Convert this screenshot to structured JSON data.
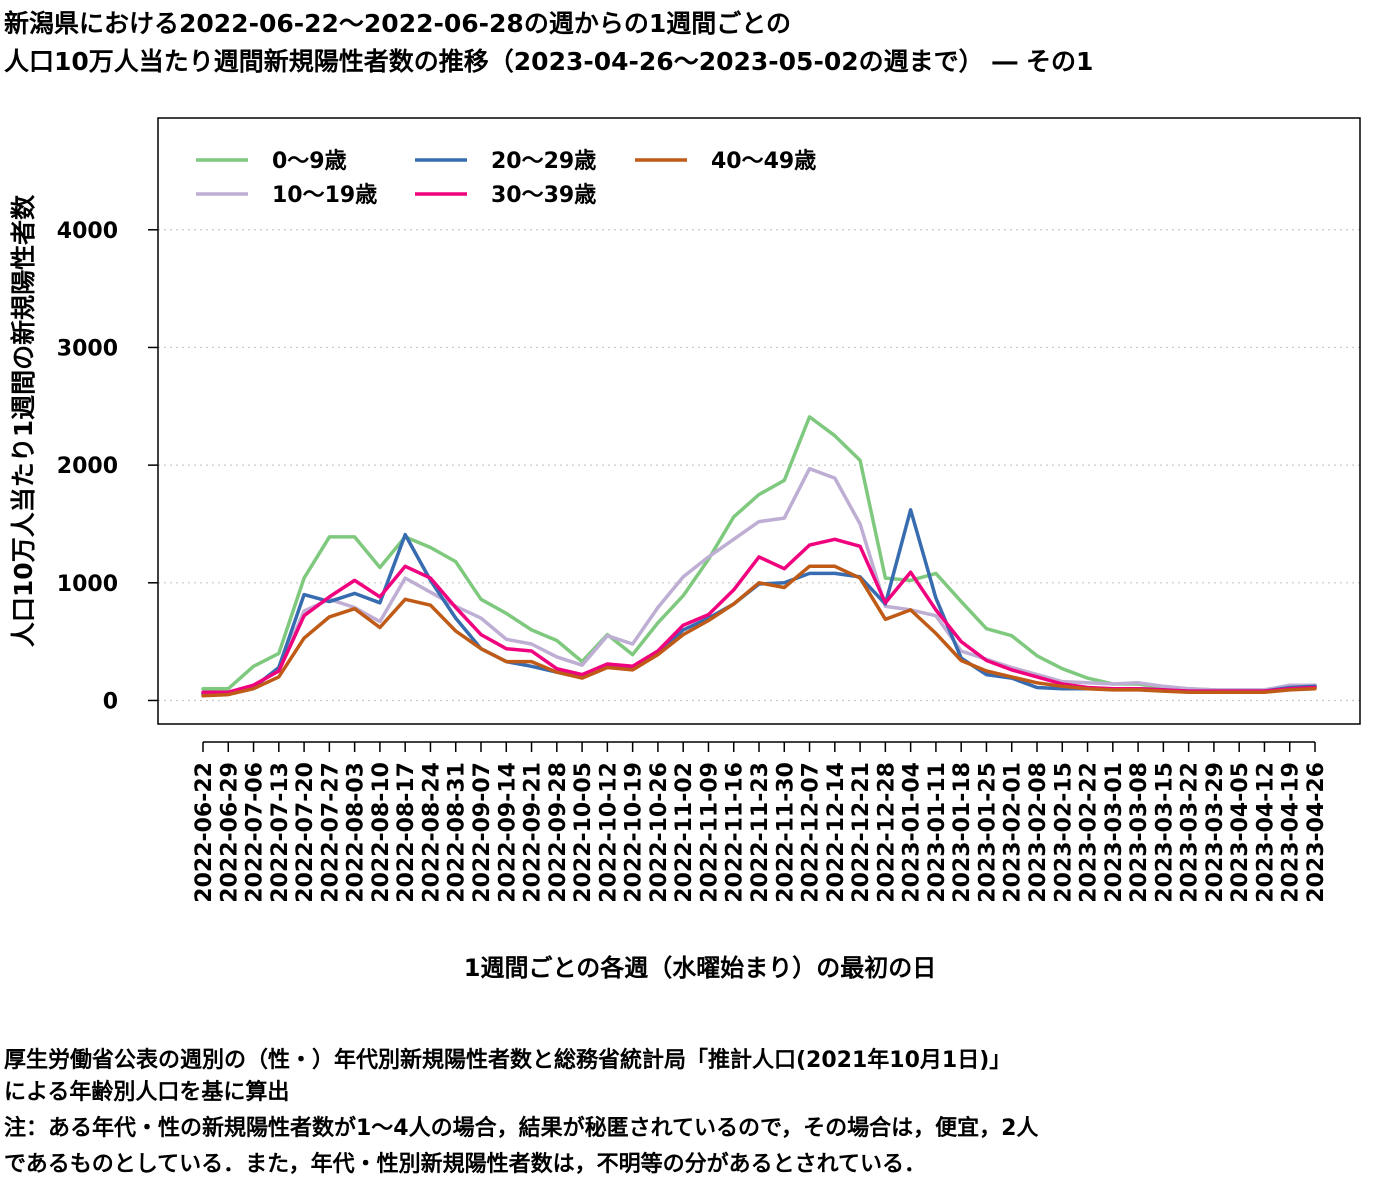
{
  "title_line1": "新潟県における2022-06-22〜2022-06-28の週からの1週間ごとの",
  "title_line2": "人口10万人当たり週間新規陽性者数の推移（2023-04-26〜2023-05-02の週まで） ― その1",
  "notes": {
    "line1": "厚生労働省公表の週別の（性・）年代別新規陽性者数と総務省統計局「推計人口(2021年10月1日)」",
    "line2": "による年齢別人口を基に算出",
    "line3": "注：ある年代・性の新規陽性者数が1〜4人の場合，結果が秘匿されているので，その場合は，便宜，2人",
    "line4": "であるものとしている．また，年代・性別新規陽性者数は，不明等の分があるとされている．"
  },
  "chart_data": {
    "type": "line",
    "xlabel": "1週間ごとの各週（水曜始まり）の最初の日",
    "ylabel": "人口10万人当たり1週間の新規陽性者数",
    "ylim": [
      -200,
      4950
    ],
    "yticks": [
      0,
      1000,
      2000,
      3000,
      4000
    ],
    "grid": "horizontal dotted",
    "legend_position": "top-left",
    "categories": [
      "2022-06-22",
      "2022-06-29",
      "2022-07-06",
      "2022-07-13",
      "2022-07-20",
      "2022-07-27",
      "2022-08-03",
      "2022-08-10",
      "2022-08-17",
      "2022-08-24",
      "2022-08-31",
      "2022-09-07",
      "2022-09-14",
      "2022-09-21",
      "2022-09-28",
      "2022-10-05",
      "2022-10-12",
      "2022-10-19",
      "2022-10-26",
      "2022-11-02",
      "2022-11-09",
      "2022-11-16",
      "2022-11-23",
      "2022-11-30",
      "2022-12-07",
      "2022-12-14",
      "2022-12-21",
      "2022-12-28",
      "2023-01-04",
      "2023-01-11",
      "2023-01-18",
      "2023-01-25",
      "2023-02-01",
      "2023-02-08",
      "2023-02-15",
      "2023-02-22",
      "2023-03-01",
      "2023-03-08",
      "2023-03-15",
      "2023-03-22",
      "2023-03-29",
      "2023-04-05",
      "2023-04-12",
      "2023-04-19",
      "2023-04-26"
    ],
    "series": [
      {
        "name": "0〜9歳",
        "color": "#7fc97f",
        "values": [
          100,
          100,
          290,
          400,
          1040,
          1390,
          1390,
          1130,
          1390,
          1300,
          1180,
          860,
          740,
          600,
          510,
          330,
          560,
          390,
          660,
          890,
          1200,
          1560,
          1750,
          1870,
          2410,
          2250,
          2040,
          1040,
          1020,
          1080,
          840,
          610,
          550,
          380,
          270,
          190,
          140,
          140,
          110,
          100,
          90,
          80,
          80,
          120,
          130
        ]
      },
      {
        "name": "10〜19歳",
        "color": "#beaed4",
        "values": [
          60,
          70,
          120,
          260,
          760,
          860,
          790,
          670,
          1040,
          920,
          800,
          700,
          520,
          480,
          370,
          300,
          550,
          480,
          790,
          1050,
          1220,
          1370,
          1520,
          1550,
          1970,
          1890,
          1500,
          800,
          770,
          720,
          420,
          350,
          280,
          220,
          160,
          150,
          140,
          150,
          120,
          100,
          90,
          90,
          90,
          130,
          130
        ]
      },
      {
        "name": "20〜29歳",
        "color": "#386cb0",
        "values": [
          60,
          60,
          110,
          280,
          900,
          840,
          910,
          830,
          1410,
          1020,
          700,
          440,
          330,
          290,
          240,
          200,
          290,
          280,
          400,
          600,
          700,
          820,
          990,
          1000,
          1080,
          1080,
          1050,
          820,
          1620,
          870,
          360,
          220,
          190,
          110,
          100,
          100,
          100,
          100,
          90,
          80,
          80,
          80,
          80,
          110,
          120
        ]
      },
      {
        "name": "30〜39歳",
        "color": "#f0027f",
        "values": [
          70,
          70,
          130,
          250,
          720,
          880,
          1020,
          880,
          1140,
          1040,
          790,
          560,
          440,
          420,
          270,
          220,
          310,
          290,
          420,
          640,
          730,
          940,
          1220,
          1120,
          1320,
          1370,
          1310,
          830,
          1090,
          770,
          500,
          340,
          260,
          200,
          140,
          110,
          100,
          100,
          90,
          80,
          80,
          80,
          80,
          100,
          110
        ]
      },
      {
        "name": "40〜49歳",
        "color": "#bf5b17",
        "values": [
          40,
          50,
          100,
          200,
          530,
          710,
          780,
          620,
          860,
          810,
          590,
          440,
          330,
          330,
          240,
          190,
          280,
          260,
          390,
          560,
          680,
          820,
          1000,
          960,
          1140,
          1140,
          1040,
          690,
          770,
          570,
          340,
          250,
          200,
          150,
          120,
          100,
          90,
          90,
          80,
          70,
          70,
          70,
          70,
          90,
          100
        ]
      }
    ]
  }
}
